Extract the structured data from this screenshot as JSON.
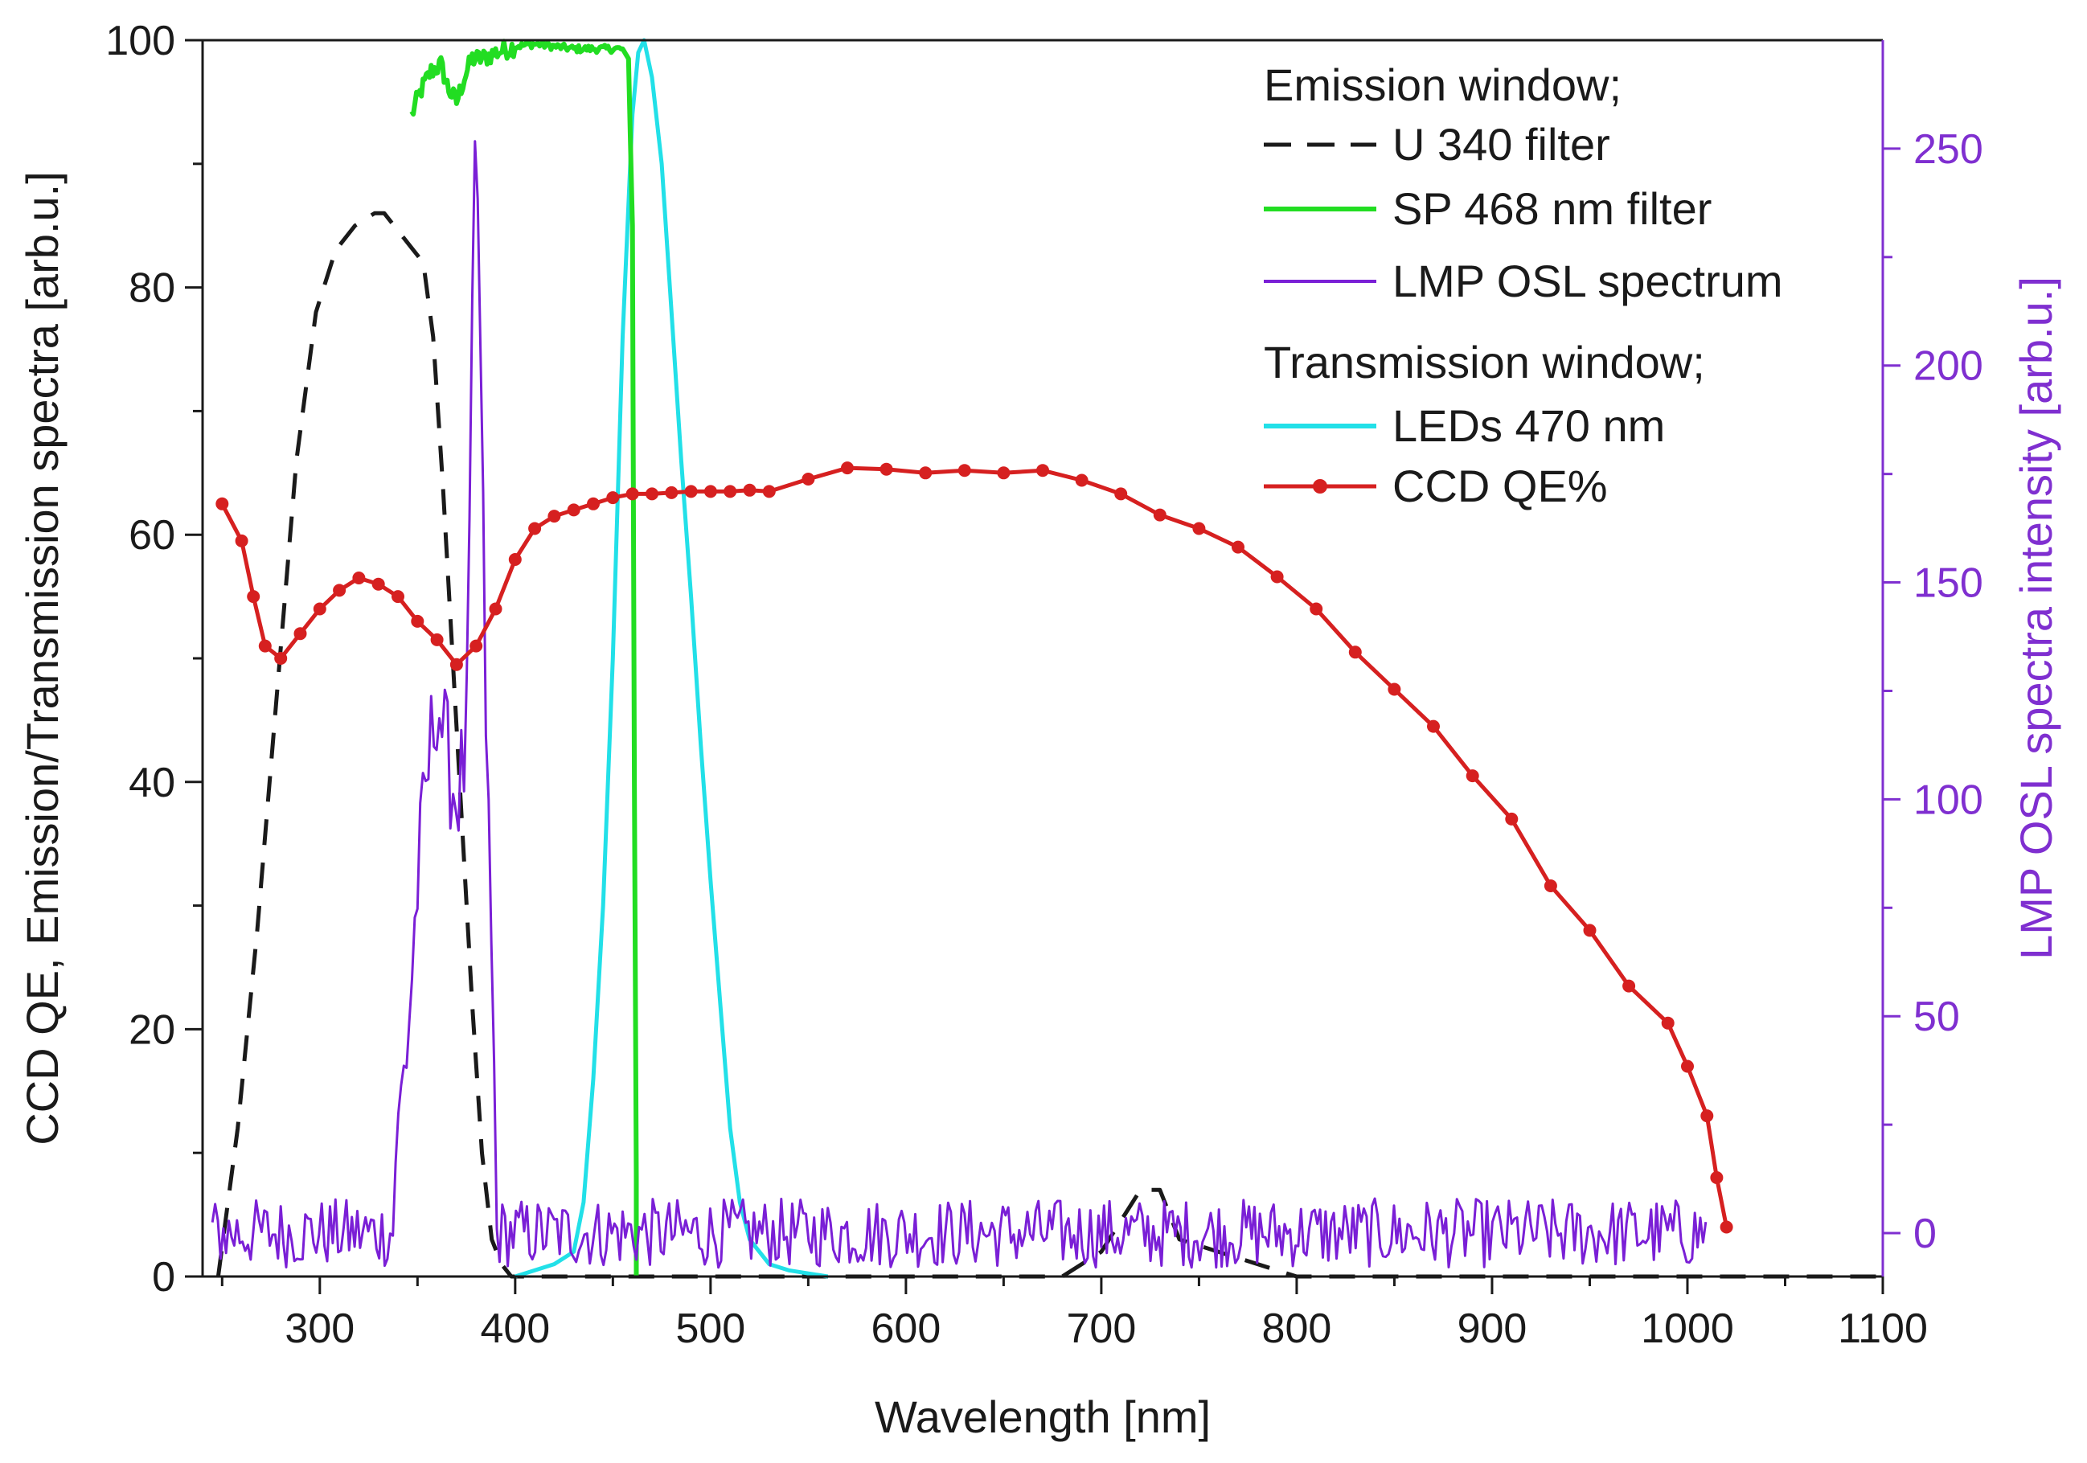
{
  "chart_data": {
    "type": "line",
    "xlabel": "Wavelength [nm]",
    "ylabel": "CCD QE, Emission/Transmission spectra [arb.u.]",
    "y2label": "LMP OSL spectra intensity [arb.u.]",
    "xlim": [
      240,
      1100
    ],
    "ylim": [
      0,
      100
    ],
    "y2lim": [
      -10,
      275
    ],
    "xticks": [
      300,
      400,
      500,
      600,
      700,
      800,
      900,
      1000,
      1100
    ],
    "yticks": [
      0,
      20,
      40,
      60,
      80,
      100
    ],
    "y2ticks": [
      0,
      50,
      100,
      150,
      200,
      250
    ],
    "grid": false,
    "legend_position": "top-right",
    "legend_headers": {
      "emission": "Emission window;",
      "transmission": "Transmission window;"
    },
    "colors": {
      "axis": "#1a1a1a",
      "right_axis": "#7f2fd0",
      "u340": "#1a1a1a",
      "sp468": "#22dd22",
      "lmp": "#7a1fd6",
      "leds": "#22e0e8",
      "ccd": "#d62020"
    },
    "series": [
      {
        "name": "U 340 filter",
        "axis": "left",
        "style": "dashed",
        "x": [
          248,
          258,
          268,
          278,
          288,
          298,
          308,
          318,
          328,
          333,
          343,
          353,
          358,
          363,
          368,
          373,
          378,
          383,
          388,
          393,
          398,
          440,
          500,
          600,
          680,
          700,
          720,
          730,
          740,
          800,
          900,
          1000,
          1100
        ],
        "y": [
          0,
          12,
          28,
          47,
          66,
          78,
          83,
          85,
          86,
          86,
          84,
          82,
          76,
          64,
          50,
          36,
          22,
          10,
          3,
          1,
          0,
          0,
          0,
          0,
          0,
          2,
          7,
          7,
          3,
          0,
          0,
          0,
          0
        ]
      },
      {
        "name": "SP 468 nm filter",
        "axis": "left",
        "style": "solid",
        "x": [
          347,
          352,
          357,
          362,
          366,
          370,
          374,
          378,
          383,
          390,
          400,
          410,
          420,
          430,
          440,
          450,
          455,
          458,
          460,
          461,
          462
        ],
        "y": [
          94,
          96,
          97.5,
          98,
          96,
          95,
          97,
          98.5,
          98.5,
          99,
          99.5,
          99.7,
          99.5,
          99.3,
          99.3,
          99.3,
          99.3,
          98.5,
          85,
          40,
          8
        ]
      },
      {
        "name": "LMP OSL spectrum",
        "axis": "right",
        "style": "solid",
        "peaks": [
          {
            "x": 338,
            "y": 15
          },
          {
            "x": 345,
            "y": 45
          },
          {
            "x": 350,
            "y": 80
          },
          {
            "x": 355,
            "y": 105
          },
          {
            "x": 360,
            "y": 125
          },
          {
            "x": 365,
            "y": 110
          },
          {
            "x": 370,
            "y": 100
          },
          {
            "x": 375,
            "y": 110
          },
          {
            "x": 380,
            "y": 262
          },
          {
            "x": 385,
            "y": 120
          },
          {
            "x": 390,
            "y": 20
          }
        ],
        "baseline": {
          "from": 245,
          "to": 1010,
          "level": 0,
          "noise": 8
        }
      },
      {
        "name": "LEDs 470 nm",
        "axis": "left",
        "style": "solid",
        "x": [
          400,
          420,
          430,
          435,
          440,
          445,
          450,
          455,
          460,
          463,
          466,
          470,
          475,
          480,
          485,
          490,
          495,
          500,
          505,
          510,
          515,
          520,
          530,
          540,
          560
        ],
        "y": [
          0,
          1,
          2,
          6,
          16,
          30,
          50,
          76,
          94,
          99,
          100,
          97,
          90,
          78,
          66,
          55,
          43,
          32,
          22,
          12,
          6,
          3,
          1,
          0.5,
          0
        ]
      },
      {
        "name": "CCD QE%",
        "axis": "left",
        "style": "solid-markers",
        "x": [
          250,
          260,
          266,
          272,
          280,
          290,
          300,
          310,
          320,
          330,
          340,
          350,
          360,
          370,
          380,
          390,
          400,
          410,
          420,
          430,
          440,
          450,
          460,
          470,
          480,
          490,
          500,
          510,
          520,
          530,
          550,
          570,
          590,
          610,
          630,
          650,
          670,
          690,
          710,
          730,
          750,
          770,
          790,
          810,
          830,
          850,
          870,
          890,
          910,
          930,
          950,
          970,
          990,
          1000,
          1010,
          1015,
          1020
        ],
        "y": [
          62.5,
          59.5,
          55,
          51,
          50,
          52,
          54,
          55.5,
          56.5,
          56,
          55,
          53,
          51.5,
          49.5,
          51,
          54,
          58,
          60.5,
          61.5,
          62,
          62.5,
          63,
          63.3,
          63.3,
          63.4,
          63.5,
          63.5,
          63.5,
          63.6,
          63.5,
          64.5,
          65.4,
          65.3,
          65,
          65.2,
          65,
          65.2,
          64.4,
          63.3,
          61.6,
          60.5,
          59,
          56.6,
          54,
          50.5,
          47.5,
          44.5,
          40.5,
          37,
          31.6,
          28,
          23.5,
          20.5,
          17,
          13,
          8,
          4
        ]
      }
    ]
  }
}
